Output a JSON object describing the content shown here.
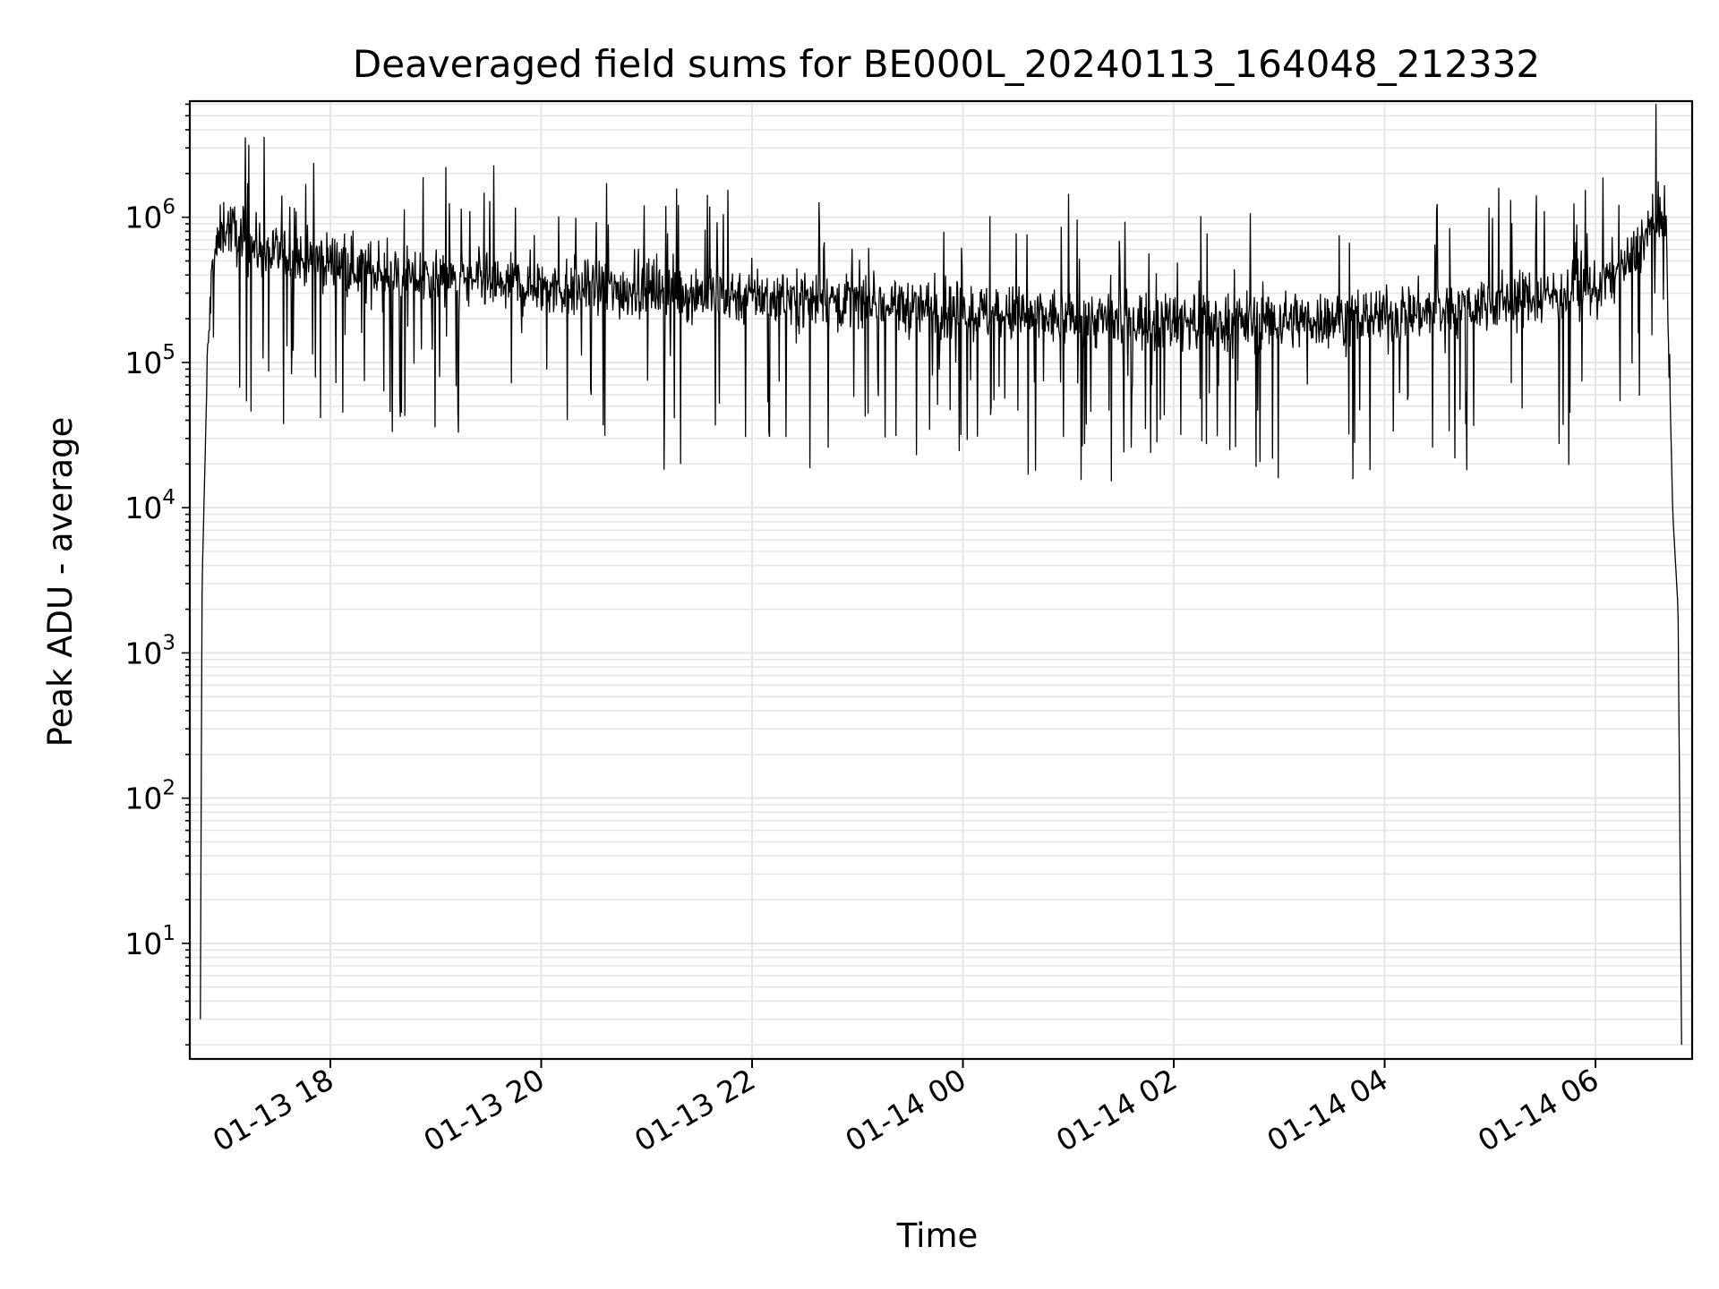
{
  "chart_data": {
    "type": "line",
    "title": "Deaveraged field sums for BE000L_20240113_164048_212332",
    "xlabel": "Time",
    "ylabel": "Peak ADU - average",
    "xscale": "time",
    "yscale": "log",
    "grid": true,
    "xlim": [
      "2024-01-13 16:40",
      "2024-01-14 06:55"
    ],
    "ylim": [
      1.6,
      6300000
    ],
    "x_ticks": [
      "01-13 18",
      "01-13 20",
      "01-13 22",
      "01-14 00",
      "01-14 02",
      "01-14 04",
      "01-14 06"
    ],
    "y_ticks": [
      {
        "base": "10",
        "exp": "1"
      },
      {
        "base": "10",
        "exp": "2"
      },
      {
        "base": "10",
        "exp": "3"
      },
      {
        "base": "10",
        "exp": "4"
      },
      {
        "base": "10",
        "exp": "5"
      },
      {
        "base": "10",
        "exp": "6"
      }
    ],
    "line_color": "#000000",
    "grid_color": "#e5e5e5",
    "series": [
      {
        "x": [
          "2024-01-13 16:46",
          "2024-01-13 16:47",
          "2024-01-13 16:50",
          "2024-01-13 16:53",
          "2024-01-13 17:00",
          "2024-01-13 17:10",
          "2024-01-13 17:20",
          "2024-01-13 17:30",
          "2024-01-13 17:45",
          "2024-01-13 18:00",
          "2024-01-13 18:15",
          "2024-01-13 18:30",
          "2024-01-13 19:00",
          "2024-01-13 19:30",
          "2024-01-13 20:00",
          "2024-01-13 20:30",
          "2024-01-13 21:00",
          "2024-01-13 21:30",
          "2024-01-13 22:00",
          "2024-01-13 22:30",
          "2024-01-13 23:00",
          "2024-01-13 23:30",
          "2024-01-14 00:00",
          "2024-01-14 00:30",
          "2024-01-14 01:00",
          "2024-01-14 01:30",
          "2024-01-14 02:00",
          "2024-01-14 02:30",
          "2024-01-14 03:00",
          "2024-01-14 03:30",
          "2024-01-14 04:00",
          "2024-01-14 04:30",
          "2024-01-14 05:00",
          "2024-01-14 05:30",
          "2024-01-14 06:00",
          "2024-01-14 06:20",
          "2024-01-14 06:30",
          "2024-01-14 06:40",
          "2024-01-14 06:42",
          "2024-01-14 06:44",
          "2024-01-14 06:47",
          "2024-01-14 06:49"
        ],
        "y": [
          3,
          3000,
          100000,
          500000,
          900000,
          700000,
          600000,
          550000,
          500000,
          500000,
          450000,
          400000,
          380000,
          350000,
          330000,
          320000,
          310000,
          300000,
          290000,
          280000,
          260000,
          240000,
          220000,
          210000,
          200000,
          195000,
          190000,
          190000,
          195000,
          200000,
          210000,
          230000,
          260000,
          290000,
          320000,
          500000,
          800000,
          1000000,
          100000,
          9000,
          2000,
          2
        ]
      }
    ]
  }
}
